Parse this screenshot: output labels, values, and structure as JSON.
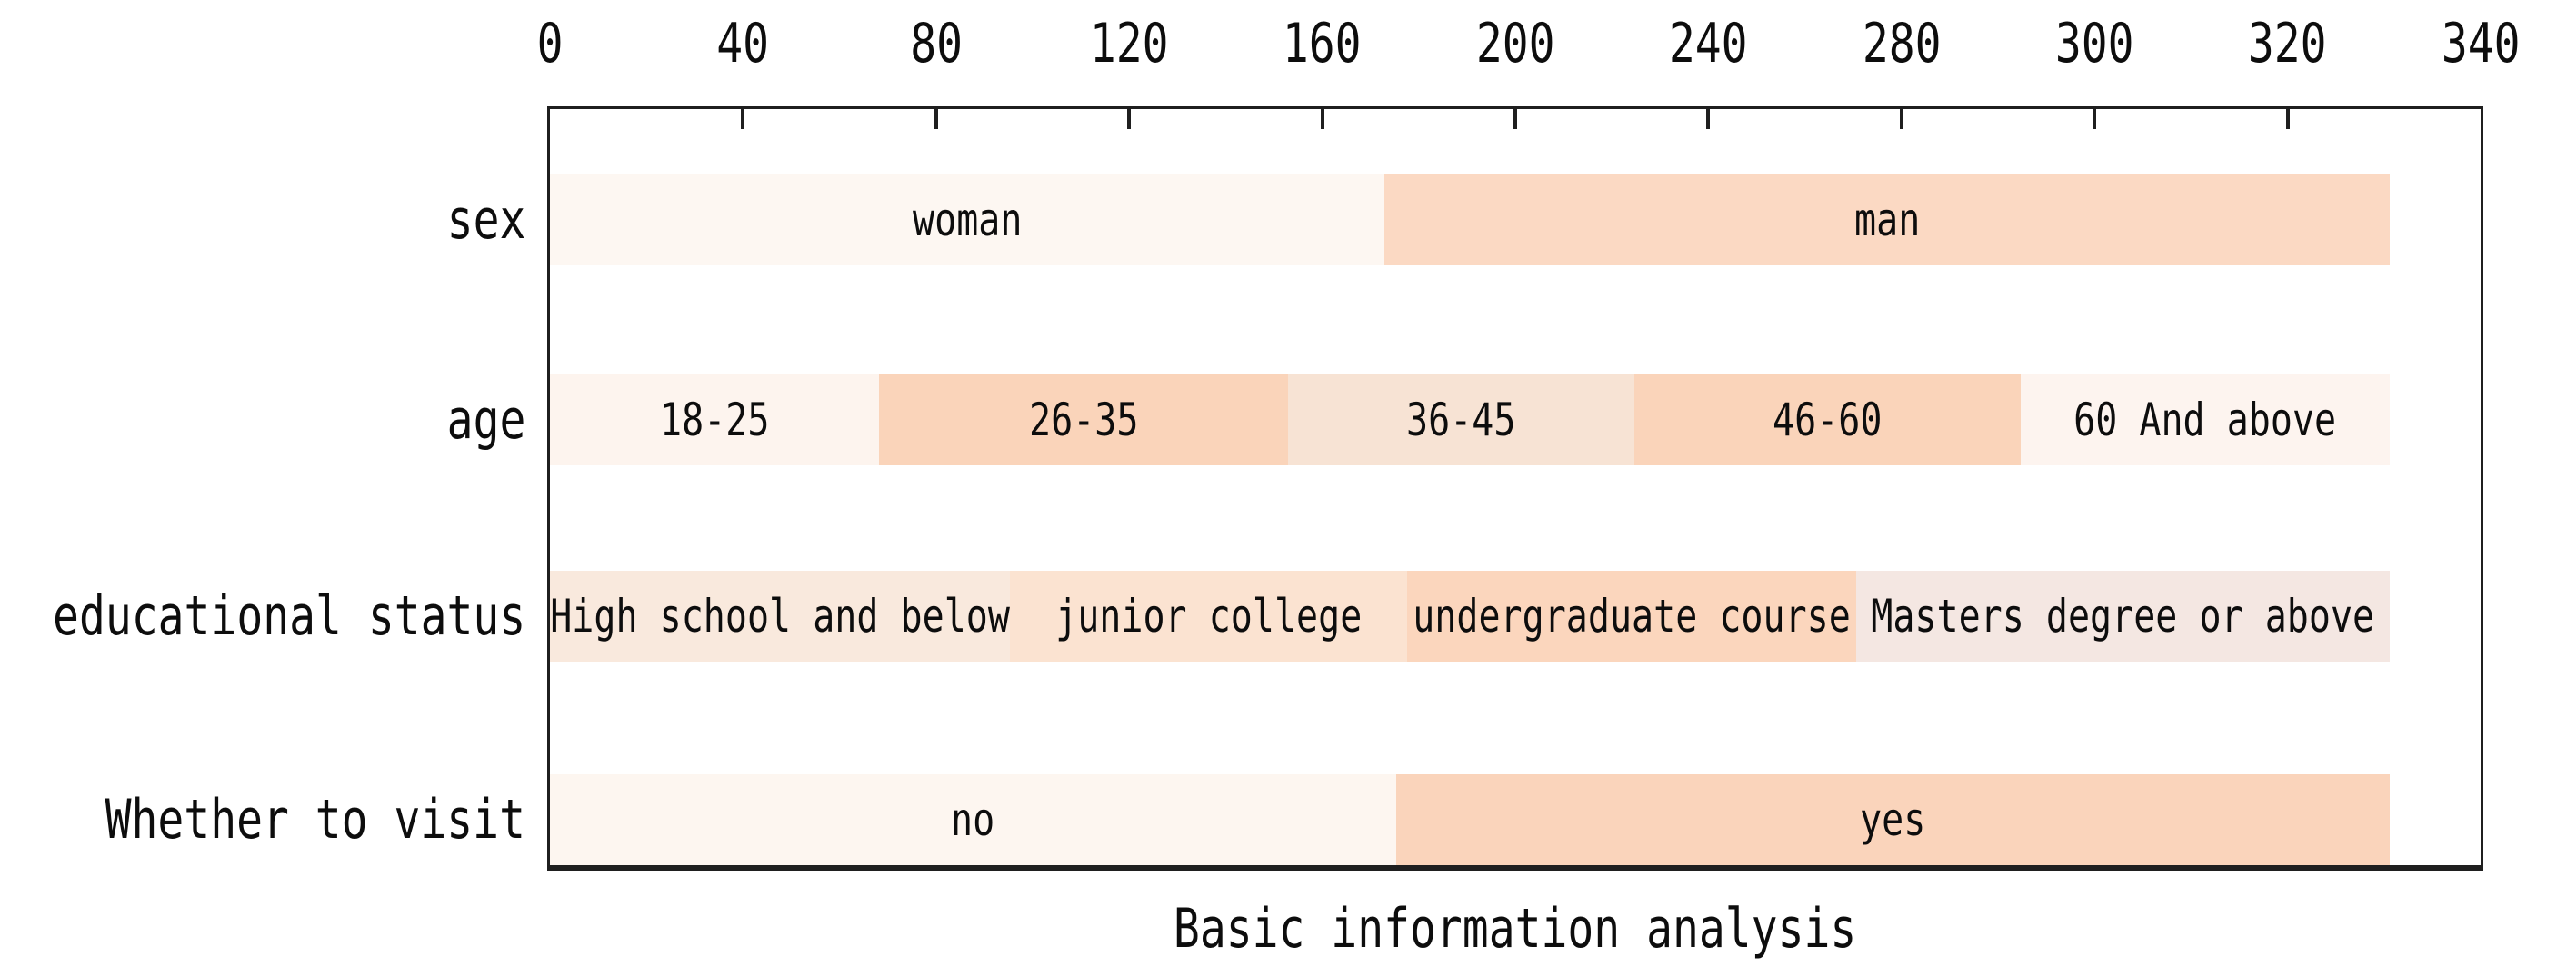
{
  "page": {
    "background": "#ffffff",
    "text_color": "#0d0d0d",
    "axis_color": "#1f1f1f"
  },
  "chart_data": {
    "type": "bar",
    "orientation": "horizontal",
    "stacked": true,
    "title": "Basic information analysis",
    "xlabel": "",
    "ylabel": "",
    "xlim": [
      0,
      340
    ],
    "xticks": [
      0,
      40,
      80,
      120,
      160,
      200,
      240,
      280,
      300,
      320,
      340
    ],
    "grid": false,
    "legend": "none",
    "categories": [
      "sex",
      "age",
      "educational status",
      "Whether to visit"
    ],
    "rows": [
      {
        "category": "sex",
        "segments": [
          {
            "label": "woman",
            "value": 147,
            "color": "#fdf7f2"
          },
          {
            "label": "man",
            "value": 177,
            "color": "#fbd9c3"
          }
        ]
      },
      {
        "category": "age",
        "segments": [
          {
            "label": "18-25",
            "value": 58,
            "color": "#fdf4ee"
          },
          {
            "label": "26-35",
            "value": 72,
            "color": "#fad4ba"
          },
          {
            "label": "36-45",
            "value": 61,
            "color": "#f7e3d4"
          },
          {
            "label": "46-60",
            "value": 68,
            "color": "#fad4ba"
          },
          {
            "label": "60 And above",
            "value": 65,
            "color": "#fdf4ef"
          }
        ]
      },
      {
        "category": "educational status",
        "segments": [
          {
            "label": "High school and below",
            "value": 81,
            "color": "#f9e9dd"
          },
          {
            "label": "junior college",
            "value": 70,
            "color": "#fbe3d1"
          },
          {
            "label": "undergraduate course",
            "value": 79,
            "color": "#fbd6bd"
          },
          {
            "label": "Masters degree or above",
            "value": 94,
            "color": "#f4e7e2"
          }
        ]
      },
      {
        "category": "Whether to visit",
        "segments": [
          {
            "label": "no",
            "value": 149,
            "color": "#fdf6f0"
          },
          {
            "label": "yes",
            "value": 175,
            "color": "#fad4bb"
          }
        ]
      }
    ]
  }
}
